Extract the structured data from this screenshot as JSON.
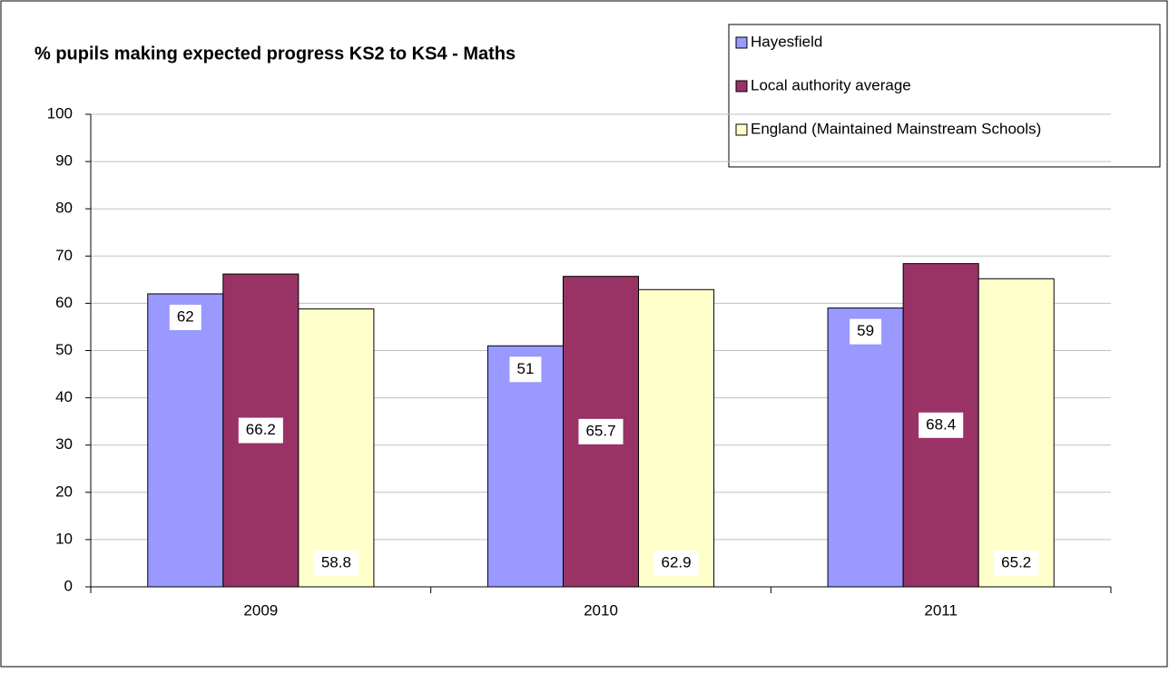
{
  "chart_data": {
    "type": "bar",
    "title": "% pupils making expected progress KS2 to KS4 - Maths",
    "categories": [
      "2009",
      "2010",
      "2011"
    ],
    "series": [
      {
        "name": "Hayesfield",
        "color": "#9999ff",
        "values": [
          62,
          51,
          59
        ]
      },
      {
        "name": "Local authority average",
        "color": "#993366",
        "values": [
          66.2,
          65.7,
          68.4
        ]
      },
      {
        "name": "England (Maintained Mainstream Schools)",
        "color": "#ffffcc",
        "values": [
          58.8,
          62.9,
          65.2
        ]
      }
    ],
    "ylim": [
      0,
      100
    ],
    "yticks": [
      0,
      10,
      20,
      30,
      40,
      50,
      60,
      70,
      80,
      90,
      100
    ],
    "grid": true,
    "legend": "top-right"
  }
}
